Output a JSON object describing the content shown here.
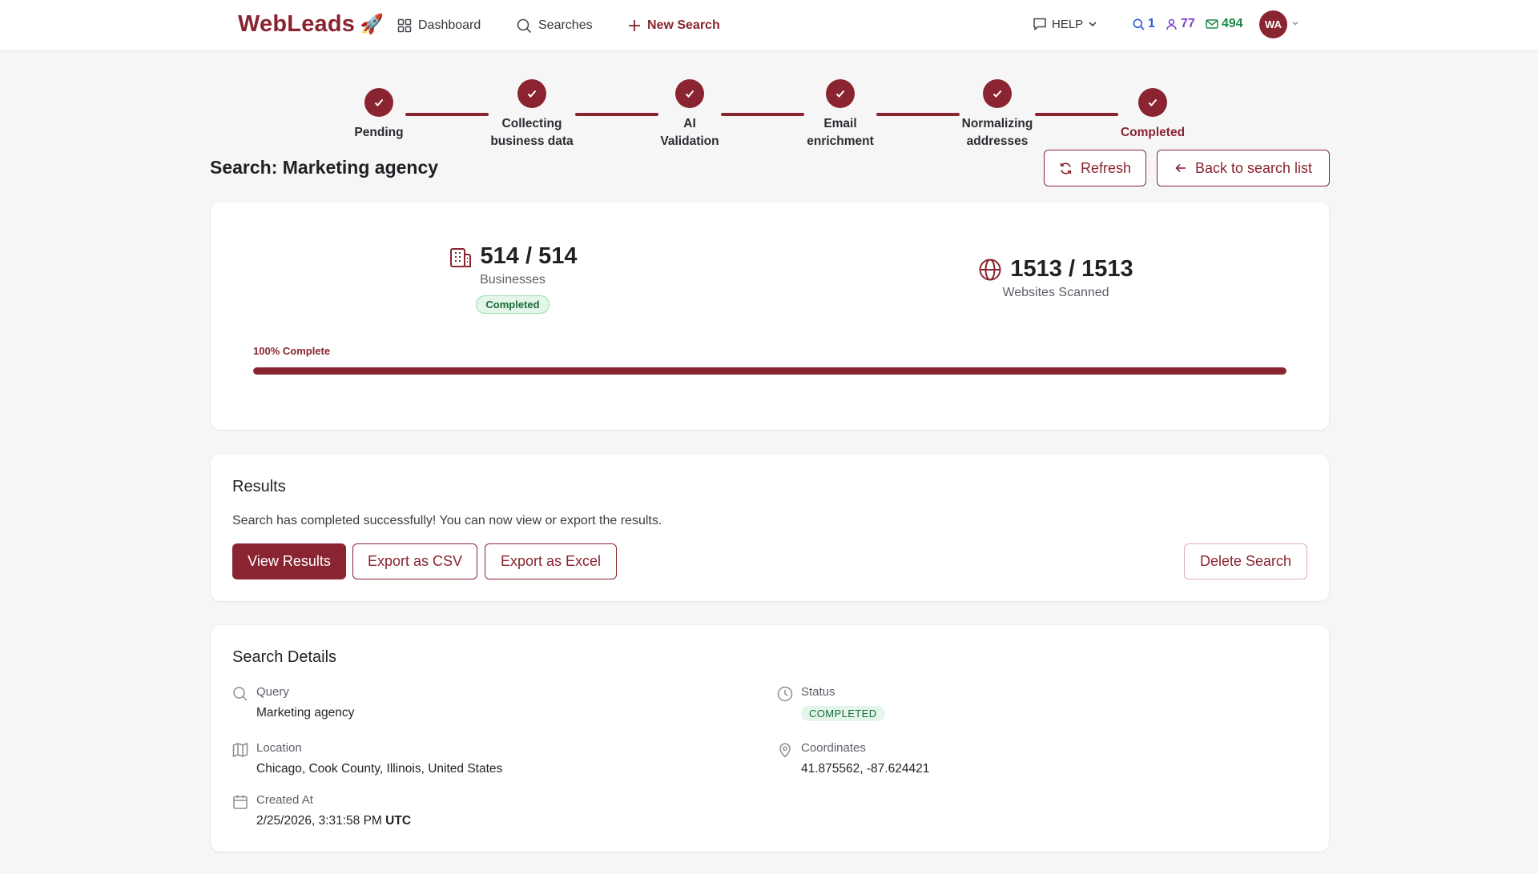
{
  "nav": {
    "brand": "WebLeads",
    "brand_emoji": "🚀",
    "dashboard": "Dashboard",
    "searches": "Searches",
    "new_search": "New Search",
    "help": "HELP",
    "stat_searches": "1",
    "stat_contacts": "77",
    "stat_emails": "494",
    "avatar": "WA"
  },
  "stepper": {
    "steps": [
      {
        "line1": "Pending",
        "line2": ""
      },
      {
        "line1": "Collecting",
        "line2": "business data"
      },
      {
        "line1": "AI",
        "line2": "Validation"
      },
      {
        "line1": "Email",
        "line2": "enrichment"
      },
      {
        "line1": "Normalizing",
        "line2": "addresses"
      },
      {
        "line1": "Completed",
        "line2": ""
      }
    ],
    "all_completed": true
  },
  "header": {
    "title": "Search: Marketing agency",
    "refresh": "Refresh",
    "back": "Back to search list"
  },
  "progress": {
    "businesses_value": "514 / 514",
    "businesses_label": "Businesses",
    "businesses_badge": "Completed",
    "websites_value": "1513 / 1513",
    "websites_label": "Websites Scanned",
    "percent_label": "100% Complete",
    "percent": 100
  },
  "results": {
    "heading": "Results",
    "message": "Search has completed successfully! You can now view or export the results.",
    "view": "View Results",
    "csv": "Export as CSV",
    "excel": "Export as Excel",
    "delete": "Delete Search"
  },
  "details": {
    "heading": "Search Details",
    "query_label": "Query",
    "query_value": "Marketing agency",
    "location_label": "Location",
    "location_value": "Chicago, Cook County, Illinois, United States",
    "created_label": "Created At",
    "created_value": "2/25/2026, 3:31:58 PM",
    "created_tz": "UTC",
    "status_label": "Status",
    "status_value": "COMPLETED",
    "coords_label": "Coordinates",
    "coords_value": "41.875562, -87.624421"
  },
  "colors": {
    "brand": "#8a2430",
    "searches_stat": "#2e5bd8",
    "contacts_stat": "#7b3fd1",
    "emails_stat": "#1e8a47",
    "success_bg": "#e3f6e9"
  }
}
